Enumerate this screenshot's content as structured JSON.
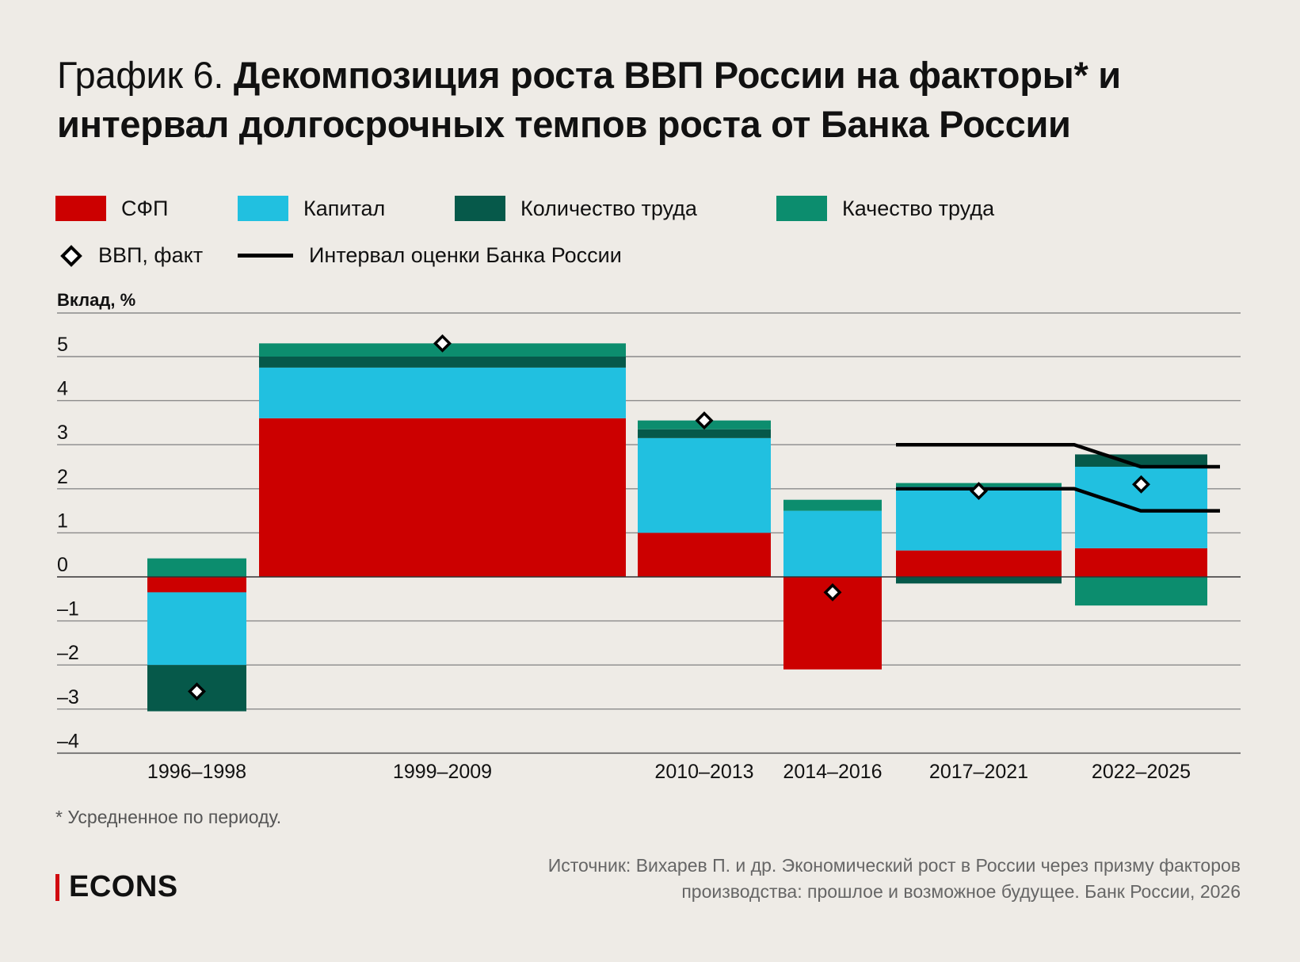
{
  "title": {
    "lead": "График 6.",
    "main": "Декомпозиция роста ВВП России на факторы* и интервал долгосрочных темпов роста от Банка России"
  },
  "legend": {
    "tfp": "СФП",
    "capital": "Капитал",
    "labor_qty": "Количество труда",
    "labor_quality": "Качество труда",
    "gdp": "ВВП, факт",
    "interval": "Интервал оценки Банка России"
  },
  "colors": {
    "tfp": "#cc0000",
    "capital": "#21c0e0",
    "labor_qty": "#06594a",
    "labor_quality": "#0c8d6e",
    "background": "#eeebe6"
  },
  "footnote": "* Усредненное по периоду.",
  "source": {
    "line1": "Источник: Вихарев П. и др. Экономический рост в России через призму факторов",
    "line2": "производства: прошлое и возможное будущее. Банк России, 2026"
  },
  "logo": "ECONS",
  "chart_data": {
    "type": "bar",
    "subtype": "stacked, variable-width",
    "ylabel": "Вклад, %",
    "ylim": [
      -4,
      6
    ],
    "yticks": [
      5,
      4,
      3,
      2,
      1,
      0,
      -1,
      -2,
      -3,
      -4
    ],
    "ytick_labels": [
      "5",
      "4",
      "3",
      "2",
      "1",
      "0",
      "–1",
      "–2",
      "–3",
      "–4"
    ],
    "categories": [
      "1996–1998",
      "1999–2009",
      "2010–2013",
      "2014–2016",
      "2017–2021",
      "2022–2025"
    ],
    "period_years": [
      [
        1996,
        1998
      ],
      [
        1999,
        2009
      ],
      [
        2010,
        2013
      ],
      [
        2014,
        2016
      ],
      [
        2017,
        2021
      ],
      [
        2022,
        2025
      ]
    ],
    "series": [
      {
        "name": "СФП",
        "key": "tfp",
        "values": [
          -0.35,
          3.6,
          1.0,
          -2.1,
          0.6,
          0.65
        ]
      },
      {
        "name": "Капитал",
        "key": "capital",
        "values": [
          -1.65,
          1.15,
          2.15,
          1.5,
          1.45,
          1.85
        ]
      },
      {
        "name": "Количество труда",
        "key": "labor_qty",
        "values": [
          -1.05,
          0.25,
          0.2,
          0.0,
          -0.15,
          0.28
        ]
      },
      {
        "name": "Качество труда",
        "key": "labor_quality",
        "values": [
          0.42,
          0.3,
          0.2,
          0.25,
          0.08,
          -0.65
        ]
      }
    ],
    "gdp_fact": {
      "name": "ВВП, факт",
      "values": [
        -2.6,
        5.3,
        3.55,
        -0.35,
        1.95,
        2.1
      ]
    },
    "interval": {
      "name": "Интервал оценки Банка России",
      "upper": {
        "x": [
          2017,
          2021,
          2022.5,
          2026
        ],
        "y": [
          3.0,
          3.0,
          2.5,
          2.5
        ]
      },
      "lower": {
        "x": [
          2017,
          2021,
          2022.5,
          2026
        ],
        "y": [
          2.0,
          2.0,
          1.5,
          1.5
        ]
      }
    },
    "grid": true,
    "legend_position": "top"
  }
}
